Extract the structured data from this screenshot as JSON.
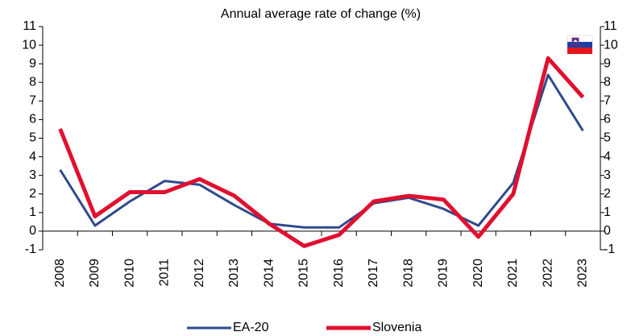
{
  "chart_data": {
    "type": "line",
    "title": "Annual average rate of change (%)",
    "categories": [
      "2008",
      "2009",
      "2010",
      "2011",
      "2012",
      "2013",
      "2014",
      "2015",
      "2016",
      "2017",
      "2018",
      "2019",
      "2020",
      "2021",
      "2022",
      "2023"
    ],
    "series": [
      {
        "name": "EA-20",
        "color": "#2f4a8c",
        "values": [
          3.3,
          0.3,
          1.6,
          2.7,
          2.5,
          1.4,
          0.4,
          0.2,
          0.2,
          1.5,
          1.8,
          1.2,
          0.3,
          2.6,
          8.4,
          5.4
        ]
      },
      {
        "name": "Slovenia",
        "color": "#e0102f",
        "values": [
          5.5,
          0.8,
          2.1,
          2.1,
          2.8,
          1.9,
          0.4,
          -0.8,
          -0.2,
          1.6,
          1.9,
          1.7,
          -0.3,
          2.0,
          9.3,
          7.2
        ]
      }
    ],
    "ylim": [
      -1,
      11
    ],
    "yticks": [
      -1,
      0,
      1,
      2,
      3,
      4,
      5,
      6,
      7,
      8,
      9,
      10,
      11
    ],
    "y2lim": [
      -1,
      11
    ],
    "y2ticks": [
      -1,
      0,
      1,
      2,
      3,
      4,
      5,
      6,
      7,
      8,
      9,
      10,
      11
    ],
    "legend": "bottom"
  }
}
